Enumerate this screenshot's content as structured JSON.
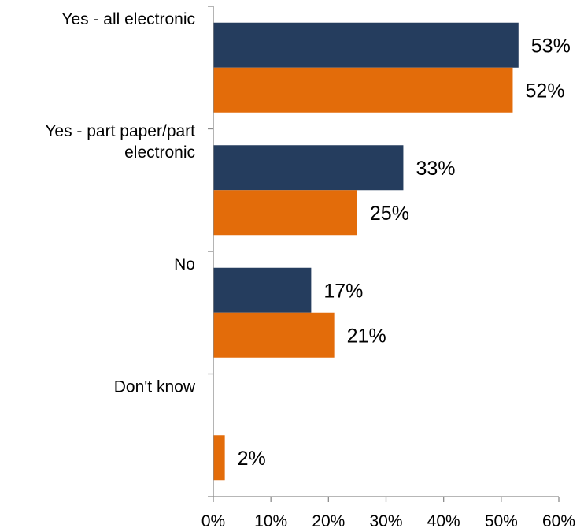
{
  "chart_data": {
    "type": "bar",
    "orientation": "horizontal",
    "title": "",
    "xlabel": "",
    "ylabel": "",
    "categories": [
      "Yes - all electronic",
      "Yes - part paper/part electronic",
      "No",
      "Don't know"
    ],
    "category_label_lines": [
      [
        "Yes - all electronic"
      ],
      [
        "Yes - part paper/part",
        "electronic"
      ],
      [
        "No"
      ],
      [
        "Don't know"
      ]
    ],
    "series": [
      {
        "color": "#253d5e",
        "values": [
          53,
          33,
          17,
          null
        ],
        "labels": [
          "53%",
          "33%",
          "17%",
          ""
        ]
      },
      {
        "color": "#e36c0a",
        "values": [
          52,
          25,
          21,
          2
        ],
        "labels": [
          "52%",
          "25%",
          "21%",
          "2%"
        ]
      }
    ],
    "xlim": [
      0,
      60
    ],
    "xticks": [
      0,
      10,
      20,
      30,
      40,
      50,
      60
    ],
    "xtick_labels": [
      "0%",
      "10%",
      "20%",
      "30%",
      "40%",
      "50%",
      "60%"
    ],
    "grid": false,
    "legend": "none"
  }
}
